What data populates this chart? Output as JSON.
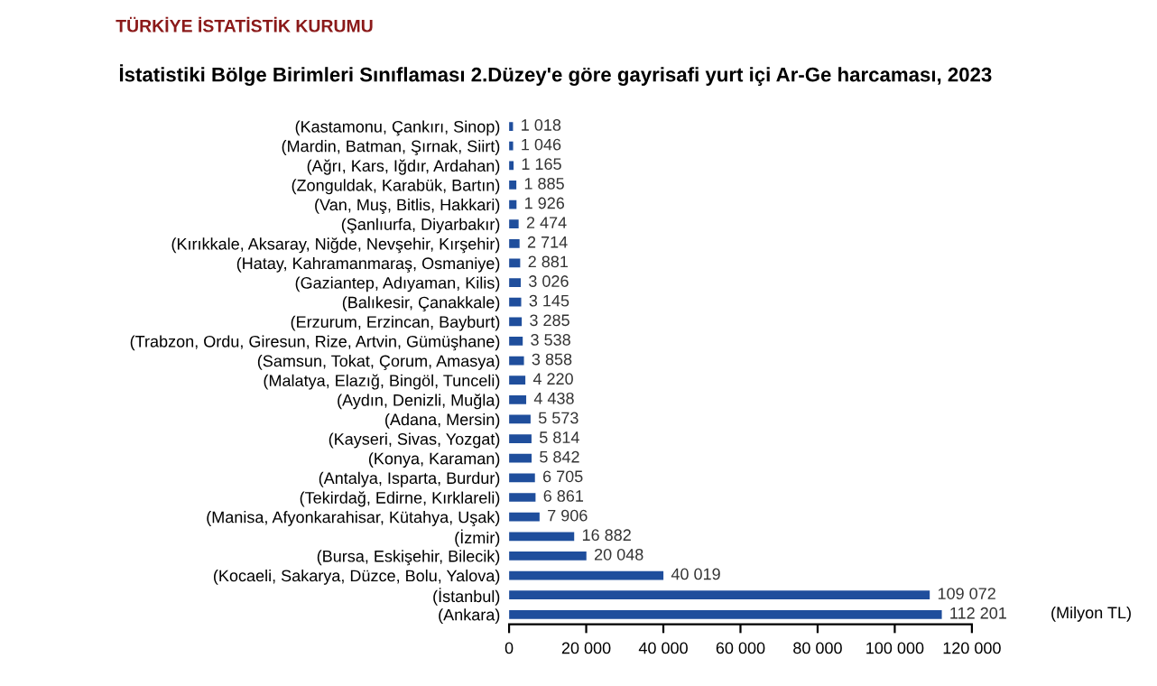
{
  "chart_data": {
    "type": "bar",
    "orientation": "horizontal",
    "title": "İstatistiki Bölge Birimleri Sınıflaması 2.Düzey'e göre gayrisafi yurt içi Ar-Ge harcaması, 2023",
    "xlabel": "(Milyon TL)",
    "annotations": [
      "TÜRKİYE İSTATİSTİK KURUMU"
    ],
    "categories": [
      "(Kastamonu, Çankırı, Sinop)",
      "(Mardin, Batman, Şırnak, Siirt)",
      "(Ağrı, Kars, Iğdır, Ardahan)",
      "(Zonguldak, Karabük, Bartın)",
      "(Van, Muş, Bitlis, Hakkari)",
      "(Şanlıurfa, Diyarbakır)",
      "(Kırıkkale, Aksaray, Niğde, Nevşehir, Kırşehir)",
      "(Hatay, Kahramanmaraş, Osmaniye)",
      "(Gaziantep, Adıyaman, Kilis)",
      "(Balıkesir, Çanakkale)",
      "(Erzurum, Erzincan, Bayburt)",
      "(Trabzon, Ordu, Giresun, Rize, Artvin, Gümüşhane)",
      "(Samsun, Tokat, Çorum, Amasya)",
      "(Malatya, Elazığ, Bingöl, Tunceli)",
      "(Aydın, Denizli, Muğla)",
      "(Adana, Mersin)",
      "(Kayseri, Sivas, Yozgat)",
      "(Konya, Karaman)",
      "(Antalya, Isparta, Burdur)",
      "(Tekirdağ, Edirne, Kırklareli)",
      "(Manisa, Afyonkarahisar, Kütahya, Uşak)",
      "(İzmir)",
      "(Bursa, Eskişehir, Bilecik)",
      "(Kocaeli, Sakarya, Düzce, Bolu, Yalova)",
      "(İstanbul)",
      "(Ankara)"
    ],
    "values": [
      1018,
      1046,
      1165,
      1885,
      1926,
      2474,
      2714,
      2881,
      3026,
      3145,
      3285,
      3538,
      3858,
      4220,
      4438,
      5573,
      5814,
      5842,
      6705,
      6861,
      7906,
      16882,
      20048,
      40019,
      109072,
      112201
    ],
    "value_labels": [
      "1 018",
      "1 046",
      "1 165",
      "1 885",
      "1 926",
      "2 474",
      "2 714",
      "2 881",
      "3 026",
      "3 145",
      "3 285",
      "3 538",
      "3 858",
      "4 220",
      "4 438",
      "5 573",
      "5 814",
      "5 842",
      "6 705",
      "6 861",
      "7 906",
      "16 882",
      "20 048",
      "40 019",
      "109 072",
      "112 201"
    ],
    "color": "#1f4e9c",
    "xlim": [
      0,
      120000
    ],
    "xticks": [
      0,
      {
        "value": 20000,
        "label": "20 000"
      },
      {
        "value": 40000,
        "label": "40 000"
      },
      {
        "value": 60000,
        "label": "60 000"
      },
      {
        "value": 80000,
        "label": "80 000"
      },
      {
        "value": 100000,
        "label": "100 000"
      },
      {
        "value": 120000,
        "label": "120 000"
      }
    ],
    "grid": false,
    "legend": false
  }
}
